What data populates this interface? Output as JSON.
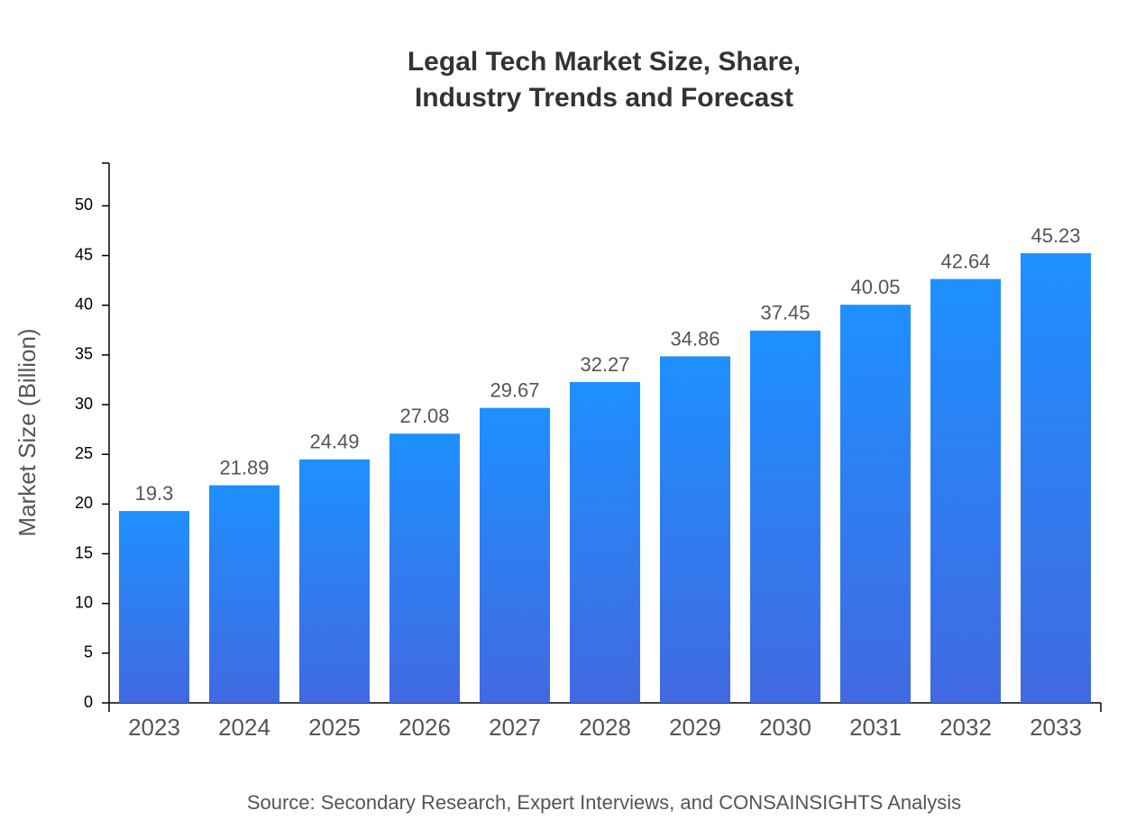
{
  "chart_data": {
    "type": "bar",
    "title": [
      "Legal Tech Market Size, Share,",
      "Industry Trends and Forecast"
    ],
    "y_label": "Market Size (Billion)",
    "source": "Source: Secondary Research, Expert Interviews, and CONSAINSIGHTS Analysis",
    "categories": [
      "2023",
      "2024",
      "2025",
      "2026",
      "2027",
      "2028",
      "2029",
      "2030",
      "2031",
      "2032",
      "2033"
    ],
    "values": [
      19.3,
      21.89,
      24.49,
      27.08,
      29.67,
      32.27,
      34.86,
      37.45,
      40.05,
      42.64,
      45.23
    ],
    "gradient": [
      "#1e90ff",
      "#4169e1"
    ],
    "ylim": [
      0,
      54.3
    ],
    "yticks": [
      0,
      5,
      10,
      15,
      20,
      25,
      30,
      35,
      40,
      45,
      50
    ]
  }
}
